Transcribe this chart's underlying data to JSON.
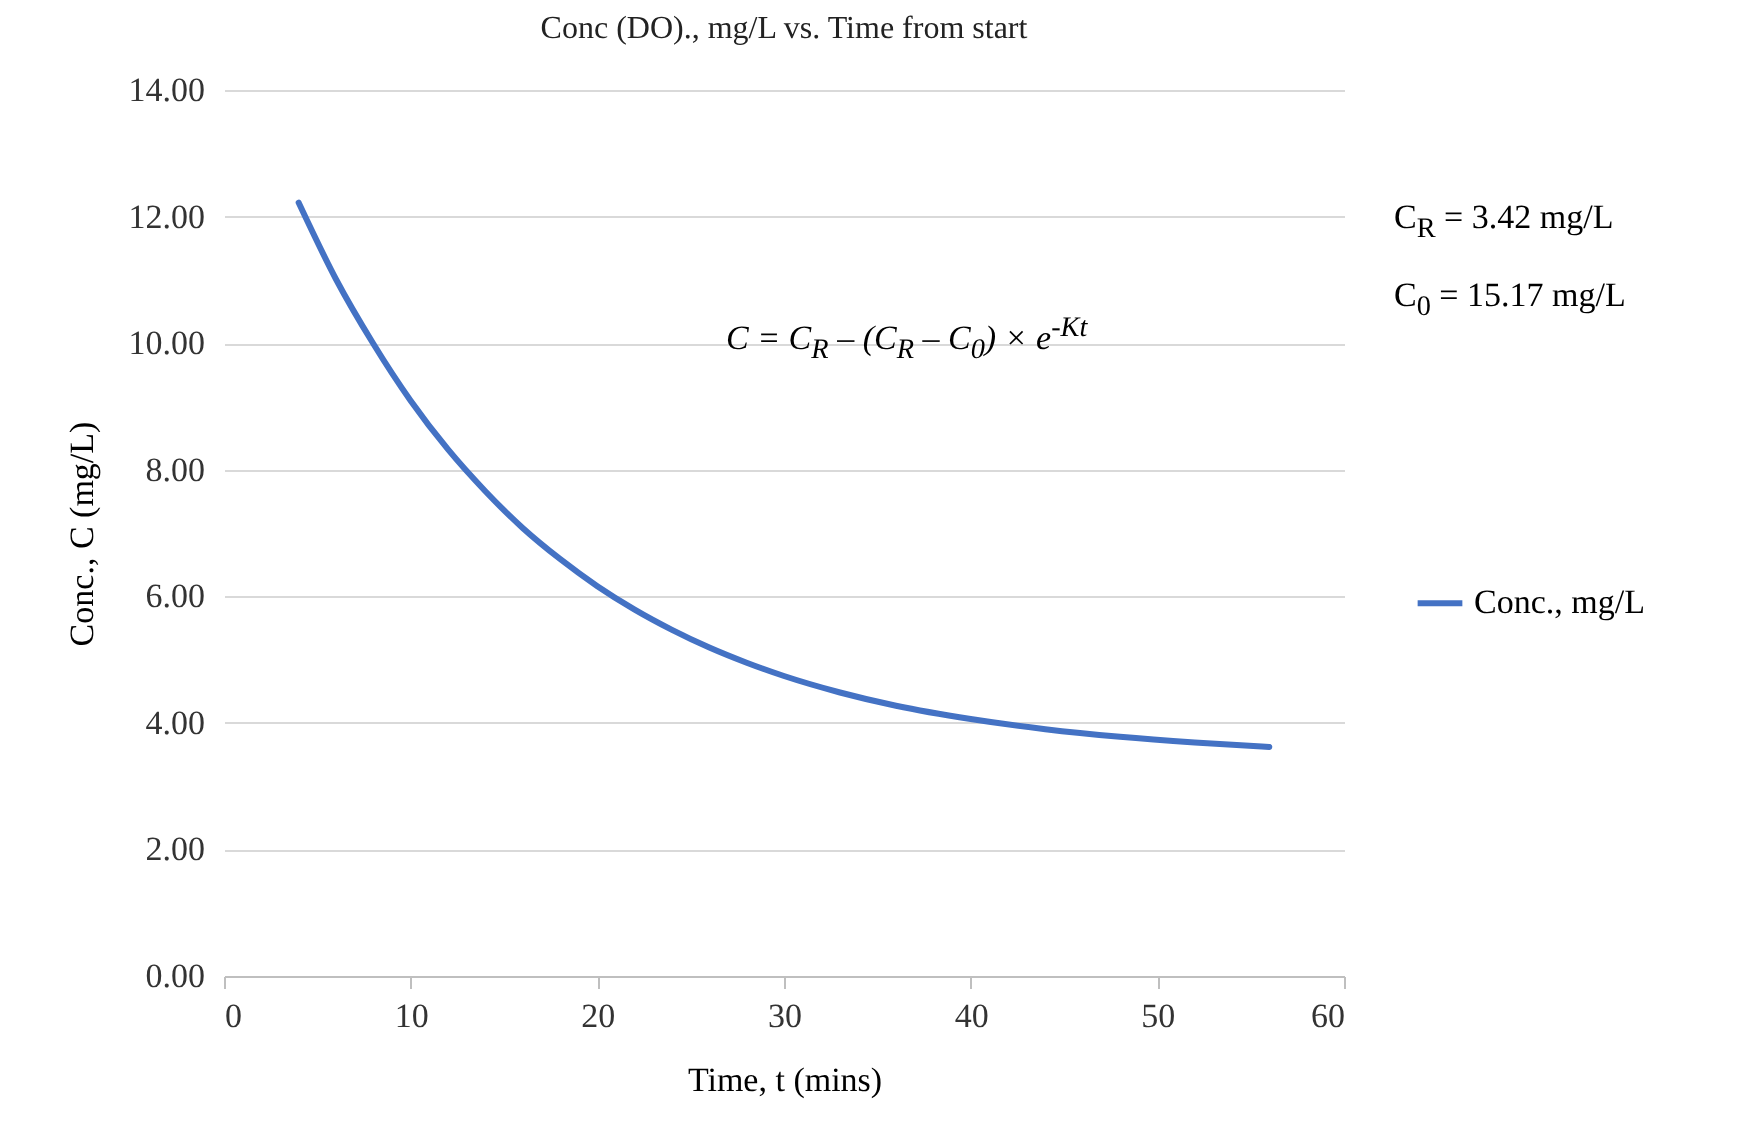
{
  "chart_data": {
    "type": "line",
    "title": "Conc (DO)., mg/L vs. Time from start",
    "xlabel": "Time, t (mins)",
    "ylabel": "Conc., C (mg/L)",
    "x": [
      4,
      6,
      8,
      10,
      12,
      14,
      16,
      18,
      20,
      22,
      24,
      26,
      28,
      30,
      33,
      36,
      40,
      44,
      48,
      52,
      56
    ],
    "series": [
      {
        "name": "Conc., mg/L",
        "color": "#4472c4",
        "values": [
          12.22,
          11.01,
          9.99,
          9.09,
          8.32,
          7.66,
          7.08,
          6.59,
          6.16,
          5.79,
          5.47,
          5.19,
          4.95,
          4.74,
          4.48,
          4.27,
          4.06,
          3.9,
          3.78,
          3.69,
          3.62
        ]
      }
    ],
    "xlim": [
      0,
      60
    ],
    "xticks": [
      0,
      10,
      20,
      30,
      40,
      50,
      60
    ],
    "ylim": [
      0,
      14
    ],
    "yticks": [
      {
        "value": 0,
        "label": "0.00"
      },
      {
        "value": 2,
        "label": "2.00"
      },
      {
        "value": 4,
        "label": "4.00"
      },
      {
        "value": 6,
        "label": "6.00"
      },
      {
        "value": 8,
        "label": "8.00"
      },
      {
        "value": 10,
        "label": "10.00"
      },
      {
        "value": 12,
        "label": "12.00"
      },
      {
        "value": 14,
        "label": "14.00"
      }
    ],
    "grid": "y",
    "legend": "right",
    "marker": "none",
    "line_style": "solid",
    "annotations": [
      "C = C$_{R}$ – (C$_{R}$ – C$_{0}$) × e$^{-Kt}$",
      "C$_{R}$ = 3.42 mg/L",
      "C$_{0}$ = 15.17 mg/L"
    ]
  }
}
